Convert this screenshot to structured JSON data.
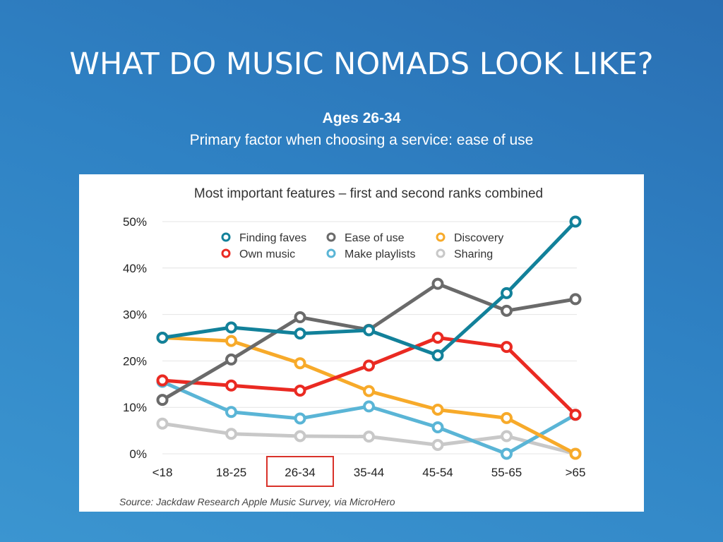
{
  "slide": {
    "title": "WHAT DO MUSIC NOMADS LOOK LIKE?",
    "subtitle_bold": "Ages 26-34",
    "subtitle": "Primary factor when choosing a service: ease of use"
  },
  "highlight": {
    "category": "26-34",
    "color": "#d9322a"
  },
  "chart_data": {
    "type": "line",
    "title": "Most important features – first and second ranks combined",
    "source": "Source: Jackdaw Research Apple Music Survey, via MicroHero",
    "categories": [
      "<18",
      "18-25",
      "26-34",
      "35-44",
      "45-54",
      "55-65",
      ">65"
    ],
    "ylim": [
      0,
      50
    ],
    "yticks": [
      0,
      10,
      20,
      30,
      40,
      50
    ],
    "ytick_labels": [
      "0%",
      "10%",
      "20%",
      "30%",
      "40%",
      "50%"
    ],
    "grid": true,
    "legend_position": "top",
    "series": [
      {
        "name": "Sharing",
        "color": "#c8c8c8",
        "values": [
          6.5,
          4.3,
          3.8,
          3.7,
          1.9,
          3.8,
          0
        ]
      },
      {
        "name": "Make playlists",
        "color": "#5ab5d6",
        "values": [
          15.5,
          9.0,
          7.6,
          10.2,
          5.7,
          0,
          8.4
        ]
      },
      {
        "name": "Discovery",
        "color": "#f7aa2a",
        "values": [
          25.0,
          24.3,
          19.5,
          13.5,
          9.5,
          7.7,
          0
        ]
      },
      {
        "name": "Own music",
        "color": "#ea2a22",
        "values": [
          15.8,
          14.7,
          13.6,
          19.0,
          25.0,
          23.0,
          8.4
        ]
      },
      {
        "name": "Ease of use",
        "color": "#6a6a6a",
        "values": [
          11.6,
          20.3,
          29.4,
          26.7,
          36.6,
          30.8,
          33.3
        ]
      },
      {
        "name": "Finding faves",
        "color": "#12819a",
        "values": [
          25.0,
          27.2,
          25.9,
          26.6,
          21.2,
          34.6,
          50.0
        ]
      }
    ],
    "legend": [
      {
        "name": "Finding faves",
        "color": "#12819a"
      },
      {
        "name": "Ease of use",
        "color": "#6a6a6a"
      },
      {
        "name": "Discovery",
        "color": "#f7aa2a"
      },
      {
        "name": "Own music",
        "color": "#ea2a22"
      },
      {
        "name": "Make playlists",
        "color": "#5ab5d6"
      },
      {
        "name": "Sharing",
        "color": "#c8c8c8"
      }
    ]
  }
}
